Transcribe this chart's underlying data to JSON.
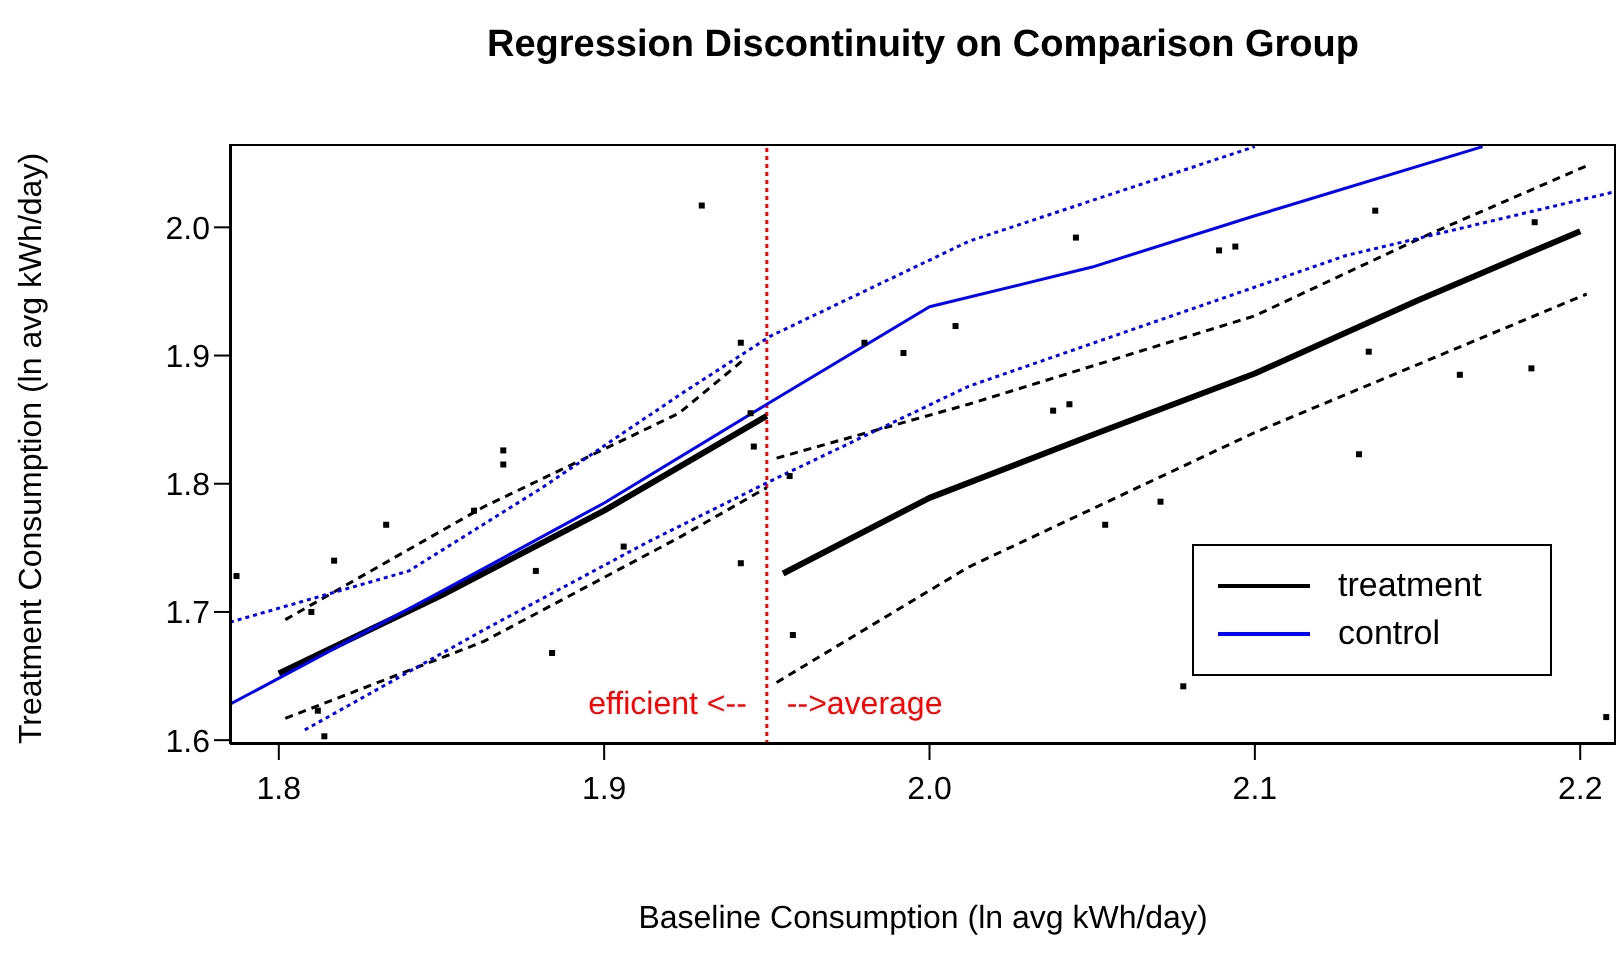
{
  "chart_data": {
    "type": "line",
    "title": "Regression Discontinuity on Comparison Group",
    "xlabel": "Baseline Consumption (ln avg kWh/day)",
    "ylabel": "Treatment Consumption (ln avg kWh/day)",
    "xlim": [
      1.785,
      2.211
    ],
    "xticks": [
      1.8,
      1.9,
      {
        "value": 2,
        "label": "2.0"
      },
      2.1,
      2.2
    ],
    "ylim": [
      1.597,
      2.065
    ],
    "yticks": [
      1.6,
      1.7,
      1.8,
      1.9,
      {
        "value": 2,
        "label": "2.0"
      }
    ],
    "grid": false,
    "legend": "bottom right",
    "marker": "none",
    "series": [
      {
        "name": "treatment",
        "color": "#000000",
        "line_style": "solid",
        "x": [
          1.8,
          1.85,
          1.9,
          1.95,
          1.951,
          1.955,
          2.0,
          2.05,
          2.1,
          2.15,
          2.2
        ],
        "values": [
          1.652,
          1.713,
          1.779,
          1.853,
          null,
          1.73,
          1.789,
          1.838,
          1.886,
          1.943,
          1.997
        ]
      },
      {
        "name": "control",
        "color": "#0000ff",
        "line_style": "solid",
        "x": [
          1.785,
          1.85,
          1.9,
          1.95,
          2.0,
          2.05,
          2.1,
          2.17
        ],
        "values": [
          1.628,
          1.716,
          1.785,
          1.862,
          1.938,
          1.969,
          2.009,
          2.063
        ]
      },
      {
        "color": "#000000",
        "line_style": "dashed",
        "x": [
          1.802,
          1.863,
          1.923,
          1.943,
          1.951,
          1.953,
          2.012,
          2.1,
          2.153,
          2.202
        ],
        "values": [
          1.694,
          1.782,
          1.855,
          1.897,
          null,
          1.82,
          1.862,
          1.931,
          1.994,
          2.048
        ]
      },
      {
        "color": "#000000",
        "line_style": "dashed",
        "x": [
          1.802,
          1.863,
          1.923,
          1.95,
          1.951,
          1.953,
          2.012,
          2.1,
          2.202
        ],
        "values": [
          1.617,
          1.677,
          1.758,
          1.797,
          null,
          1.645,
          1.735,
          1.84,
          1.948
        ]
      },
      {
        "color": "#0000ff",
        "line_style": "dotted",
        "x": [
          1.785,
          1.84,
          1.881,
          1.923,
          1.951,
          2.012,
          2.1
        ],
        "values": [
          1.692,
          1.732,
          1.797,
          1.869,
          1.915,
          1.989,
          2.063
        ]
      },
      {
        "color": "#0000ff",
        "line_style": "dotted",
        "x": [
          1.808,
          1.863,
          1.913,
          1.951,
          2.012,
          2.128,
          2.211
        ],
        "values": [
          1.608,
          1.686,
          1.754,
          1.802,
          1.876,
          1.978,
          2.028
        ]
      },
      {
        "type": "scatter",
        "color": "#000000",
        "marker": "square",
        "x": [
          1.787,
          1.812,
          1.814,
          1.817,
          1.81,
          1.833,
          1.869,
          1.869,
          1.86,
          1.879,
          1.884,
          1.906,
          1.93,
          1.942,
          1.945,
          1.946,
          1.942,
          1.957,
          1.958,
          1.98,
          1.992,
          2.008,
          2.038,
          2.043,
          2.045,
          2.054,
          2.071,
          2.078,
          2.089,
          2.094,
          2.132,
          2.135,
          2.137,
          2.163,
          2.185,
          2.186,
          2.208
        ],
        "values": [
          1.728,
          1.623,
          1.603,
          1.74,
          1.7,
          1.768,
          1.826,
          1.815,
          1.779,
          1.732,
          1.668,
          1.751,
          2.017,
          1.91,
          1.855,
          1.829,
          1.738,
          1.806,
          1.682,
          1.91,
          1.902,
          1.923,
          1.857,
          1.862,
          1.992,
          1.768,
          1.786,
          1.642,
          1.982,
          1.985,
          1.823,
          1.903,
          2.013,
          1.885,
          1.89,
          2.004,
          1.618
        ]
      }
    ],
    "ref_lines": [
      {
        "axis": "x",
        "value": 1.95,
        "color": "#ff0000",
        "line_style": "dotted"
      }
    ],
    "annotations": [
      "efficient <--",
      "-->average"
    ]
  }
}
